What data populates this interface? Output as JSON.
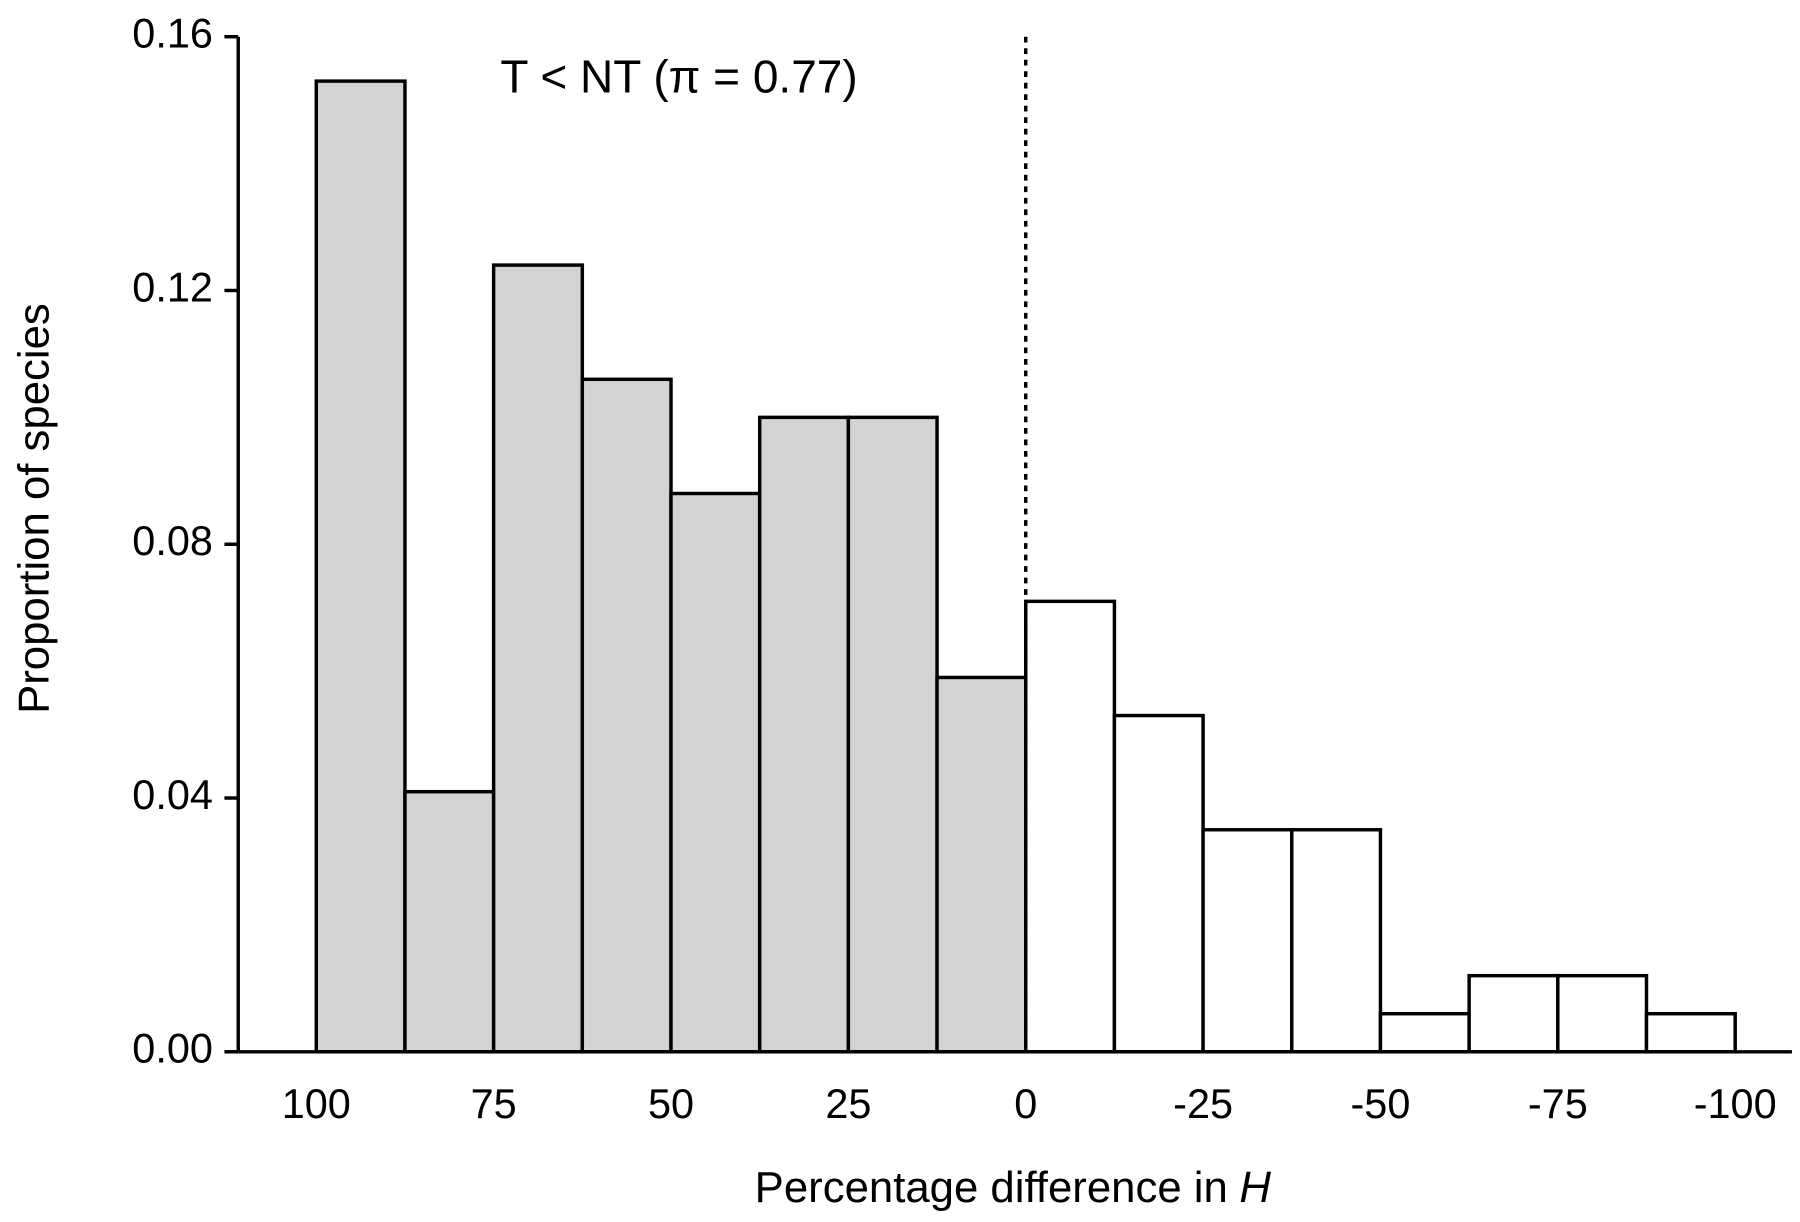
{
  "chart_data": {
    "type": "histogram",
    "xlabel": "Percentage difference in",
    "xlabel_variable": "H",
    "ylabel": "Proportion of species",
    "annotation": "T < NT (π = 0.77)",
    "bins": [
      100,
      87.5,
      75,
      62.5,
      50,
      37.5,
      25,
      12.5,
      0,
      -12.5,
      -25,
      -37.5,
      -50,
      -62.5,
      -75,
      -87.5,
      -100
    ],
    "values": [
      0.153,
      0.041,
      0.124,
      0.106,
      0.088,
      0.1,
      0.1,
      0.059,
      0.071,
      0.053,
      0.035,
      0.035,
      0.006,
      0.012,
      0.012,
      0.006
    ],
    "colors": [
      "#d3d3d3",
      "#d3d3d3",
      "#d3d3d3",
      "#d3d3d3",
      "#d3d3d3",
      "#d3d3d3",
      "#d3d3d3",
      "#d3d3d3",
      "#ffffff",
      "#ffffff",
      "#ffffff",
      "#ffffff",
      "#ffffff",
      "#ffffff",
      "#ffffff",
      "#ffffff"
    ],
    "xlim": [
      111,
      -108
    ],
    "xticks": [
      100,
      75,
      50,
      25,
      0,
      -25,
      -50,
      -75,
      -100
    ],
    "ylim": [
      0,
      0.16
    ],
    "yticks": [
      {
        "value": 0,
        "label": "0.00"
      },
      0.04,
      0.08,
      0.12,
      0.16
    ],
    "reference_line_x": 0,
    "grid": false
  }
}
